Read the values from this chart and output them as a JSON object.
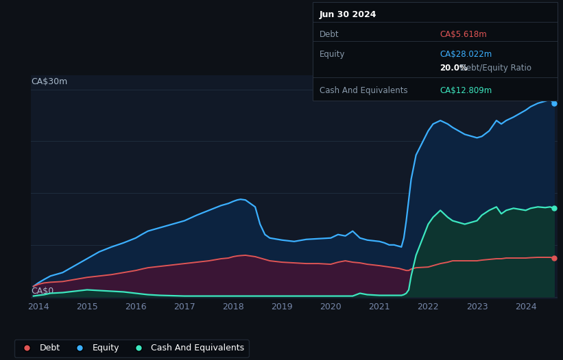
{
  "bg_color": "#0d1117",
  "plot_bg_color": "#111927",
  "ylabel_top": "CA$30m",
  "ylabel_bottom": "CA$0",
  "debt_color": "#e05555",
  "equity_color": "#3cb0ff",
  "cash_color": "#3de8c0",
  "equity_fill": "#0c2340",
  "debt_fill": "#3a1535",
  "cash_fill": "#0d3530",
  "cash_fill2": "#1a3535",
  "tooltip_bg": "#090d12",
  "tooltip_border": "#252e3a",
  "tooltip_title": "Jun 30 2024",
  "tooltip_debt_label": "Debt",
  "tooltip_debt_value": "CA$5.618m",
  "tooltip_equity_label": "Equity",
  "tooltip_equity_value": "CA$28.022m",
  "tooltip_ratio": "20.0%",
  "tooltip_ratio_text": " Debt/Equity Ratio",
  "tooltip_cash_label": "Cash And Equivalents",
  "tooltip_cash_value": "CA$12.809m",
  "years": [
    2013.9,
    2014.0,
    2014.12,
    2014.25,
    2014.5,
    2014.75,
    2015.0,
    2015.25,
    2015.5,
    2015.75,
    2016.0,
    2016.12,
    2016.25,
    2016.5,
    2016.75,
    2017.0,
    2017.25,
    2017.5,
    2017.75,
    2017.9,
    2018.0,
    2018.08,
    2018.15,
    2018.25,
    2018.35,
    2018.45,
    2018.55,
    2018.65,
    2018.75,
    2019.0,
    2019.25,
    2019.5,
    2019.75,
    2020.0,
    2020.15,
    2020.3,
    2020.45,
    2020.6,
    2020.75,
    2021.0,
    2021.1,
    2021.2,
    2021.3,
    2021.4,
    2021.45,
    2021.5,
    2021.55,
    2021.6,
    2021.65,
    2021.75,
    2022.0,
    2022.1,
    2022.25,
    2022.4,
    2022.5,
    2022.75,
    2023.0,
    2023.1,
    2023.25,
    2023.4,
    2023.5,
    2023.6,
    2023.75,
    2024.0,
    2024.1,
    2024.25,
    2024.4,
    2024.5,
    2024.58
  ],
  "equity": [
    1.5,
    2.0,
    2.5,
    3.0,
    3.5,
    4.5,
    5.5,
    6.5,
    7.2,
    7.8,
    8.5,
    9.0,
    9.5,
    10.0,
    10.5,
    11.0,
    11.8,
    12.5,
    13.2,
    13.5,
    13.8,
    14.0,
    14.1,
    14.0,
    13.5,
    13.0,
    10.5,
    9.0,
    8.5,
    8.2,
    8.0,
    8.3,
    8.4,
    8.5,
    9.0,
    8.8,
    9.5,
    8.5,
    8.2,
    8.0,
    7.8,
    7.5,
    7.5,
    7.3,
    7.2,
    8.5,
    11.0,
    14.0,
    17.0,
    20.5,
    24.0,
    25.0,
    25.5,
    25.0,
    24.5,
    23.5,
    23.0,
    23.2,
    24.0,
    25.5,
    25.0,
    25.5,
    26.0,
    27.0,
    27.5,
    28.0,
    28.3,
    28.5,
    28.022
  ],
  "debt": [
    1.5,
    1.8,
    2.0,
    2.1,
    2.2,
    2.5,
    2.8,
    3.0,
    3.2,
    3.5,
    3.8,
    4.0,
    4.2,
    4.4,
    4.6,
    4.8,
    5.0,
    5.2,
    5.5,
    5.6,
    5.8,
    5.9,
    5.95,
    6.0,
    5.9,
    5.8,
    5.6,
    5.4,
    5.2,
    5.0,
    4.9,
    4.8,
    4.8,
    4.7,
    5.0,
    5.2,
    5.0,
    4.9,
    4.7,
    4.5,
    4.4,
    4.3,
    4.2,
    4.1,
    4.0,
    3.9,
    3.8,
    3.8,
    4.0,
    4.2,
    4.3,
    4.5,
    4.8,
    5.0,
    5.2,
    5.2,
    5.2,
    5.3,
    5.4,
    5.5,
    5.5,
    5.6,
    5.6,
    5.6,
    5.65,
    5.7,
    5.7,
    5.7,
    5.618
  ],
  "cash": [
    0.1,
    0.2,
    0.3,
    0.5,
    0.6,
    0.8,
    1.0,
    0.9,
    0.8,
    0.7,
    0.5,
    0.4,
    0.3,
    0.2,
    0.15,
    0.1,
    0.1,
    0.1,
    0.1,
    0.1,
    0.1,
    0.1,
    0.1,
    0.1,
    0.1,
    0.1,
    0.1,
    0.1,
    0.1,
    0.1,
    0.1,
    0.1,
    0.1,
    0.1,
    0.1,
    0.1,
    0.1,
    0.5,
    0.3,
    0.2,
    0.2,
    0.2,
    0.2,
    0.2,
    0.2,
    0.3,
    0.5,
    1.0,
    3.0,
    6.0,
    10.5,
    11.5,
    12.5,
    11.5,
    11.0,
    10.5,
    11.0,
    11.8,
    12.5,
    13.0,
    12.0,
    12.5,
    12.8,
    12.5,
    12.8,
    13.0,
    12.9,
    13.0,
    12.809
  ],
  "xtick_positions": [
    2014,
    2015,
    2016,
    2017,
    2018,
    2019,
    2020,
    2021,
    2022,
    2023,
    2024
  ],
  "xtick_labels": [
    "2014",
    "2015",
    "2016",
    "2017",
    "2018",
    "2019",
    "2020",
    "2021",
    "2022",
    "2023",
    "2024"
  ],
  "grid_color": "#1e2d3d",
  "legend_labels": [
    "Debt",
    "Equity",
    "Cash And Equivalents"
  ],
  "legend_colors": [
    "#e05555",
    "#3cb0ff",
    "#3de8c0"
  ]
}
